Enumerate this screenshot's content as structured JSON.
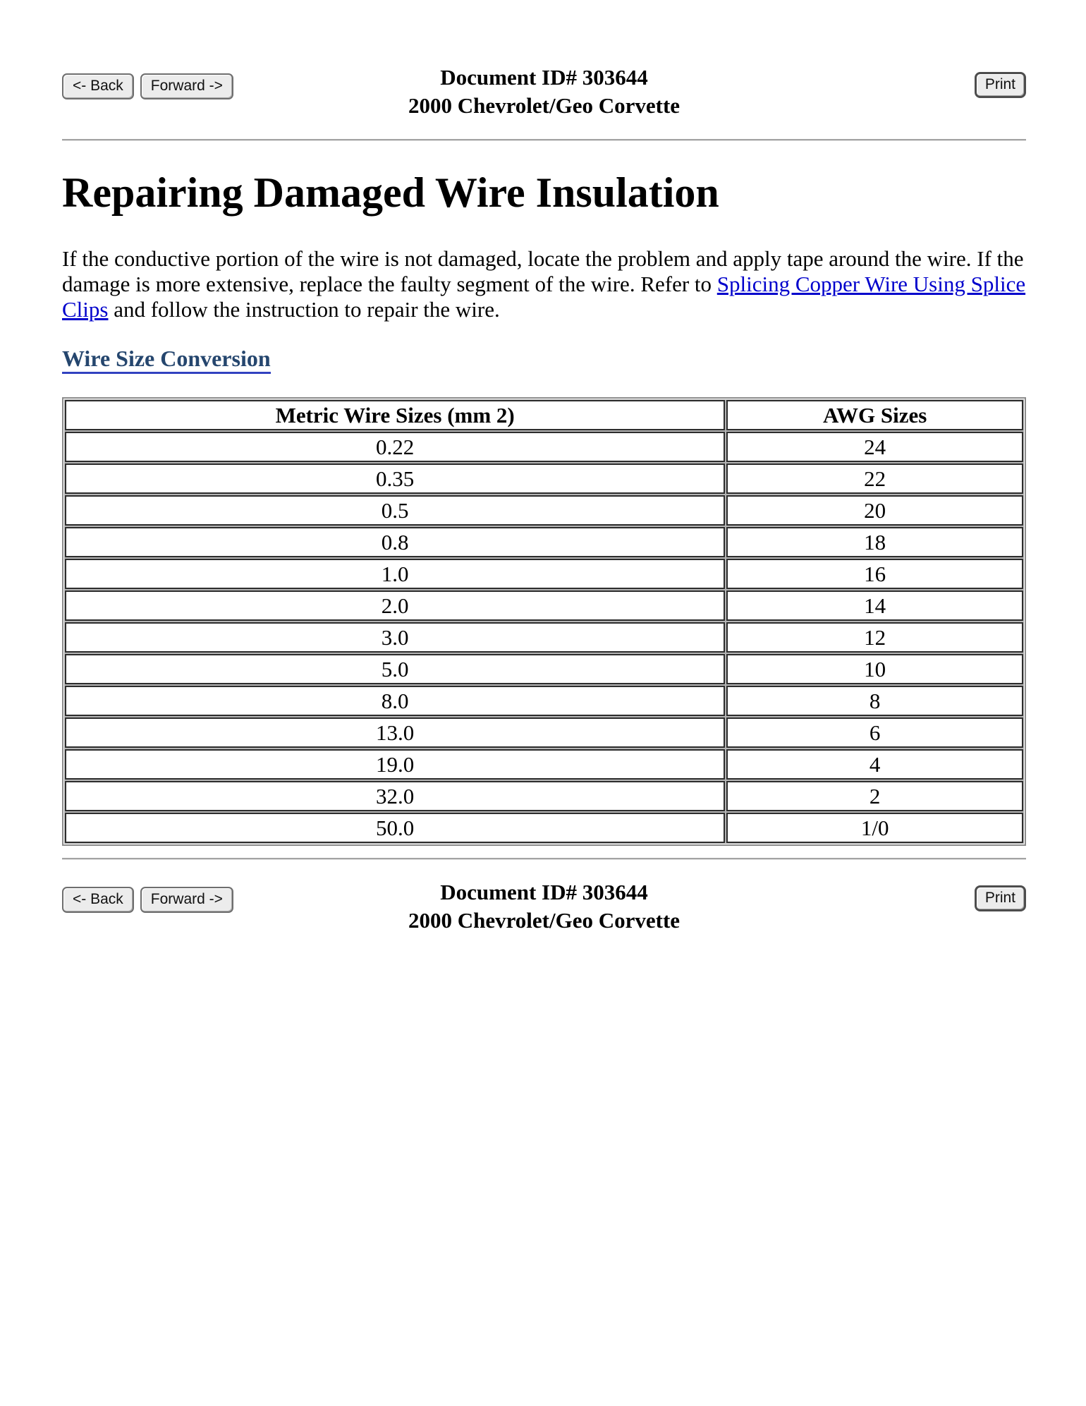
{
  "nav": {
    "back_label": "<- Back",
    "forward_label": "Forward ->",
    "print_label": "Print",
    "doc_id_line": "Document ID# 303644",
    "vehicle_line": "2000 Chevrolet/Geo Corvette"
  },
  "article": {
    "title": "Repairing Damaged Wire Insulation",
    "paragraph_before_link": "If the conductive portion of the wire is not damaged, locate the problem and apply tape around the wire. If the damage is more extensive, replace the faulty segment of the wire. Refer to ",
    "paragraph_link": "Splicing Copper Wire Using Splice Clips",
    "paragraph_after_link": " and follow the instruction to repair the wire.",
    "section_heading_link": "Wire Size Conversion"
  },
  "conversion_table": {
    "col_headers": [
      "Metric Wire Sizes (mm 2)",
      "AWG Sizes"
    ],
    "rows": [
      [
        "0.22",
        "24"
      ],
      [
        "0.35",
        "22"
      ],
      [
        "0.5",
        "20"
      ],
      [
        "0.8",
        "18"
      ],
      [
        "1.0",
        "16"
      ],
      [
        "2.0",
        "14"
      ],
      [
        "3.0",
        "12"
      ],
      [
        "5.0",
        "10"
      ],
      [
        "8.0",
        "8"
      ],
      [
        "13.0",
        "6"
      ],
      [
        "19.0",
        "4"
      ],
      [
        "32.0",
        "2"
      ],
      [
        "50.0",
        "1/0"
      ]
    ]
  },
  "colors": {
    "link_blue": "#0000cc",
    "section_link": "#25466e",
    "section_underline": "#3242c0",
    "button_face": "#ececec",
    "button_border": "#6e6e6e",
    "table_outer_border": "#8c8c8c",
    "cell_border": "#2d2d2d"
  }
}
